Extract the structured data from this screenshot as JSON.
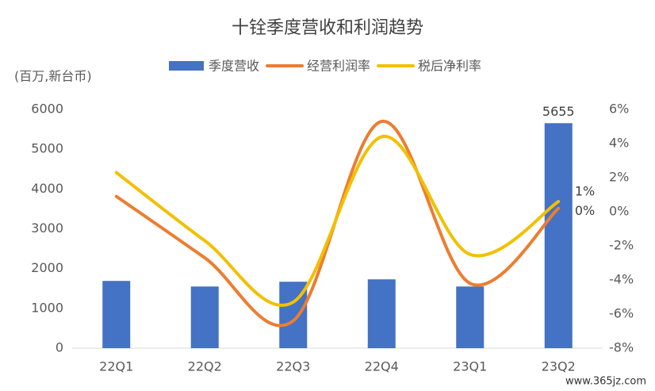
{
  "chart_data": {
    "type": "bar-line",
    "title": "十铨季度营收和利润趋势",
    "y_label": "(百万,新台币)",
    "watermark": "www.365jz.com",
    "categories": [
      "22Q1",
      "22Q2",
      "22Q3",
      "22Q4",
      "23Q1",
      "23Q2"
    ],
    "series": [
      {
        "name": "季度营收",
        "type": "bar",
        "color": "#4472c4",
        "values": [
          1690,
          1550,
          1670,
          1730,
          1550,
          5655
        ],
        "value_labels": [
          null,
          null,
          null,
          null,
          null,
          "5655"
        ]
      },
      {
        "name": "经营利润率",
        "type": "line",
        "axis": "y2",
        "color": "#ed7d31",
        "values": [
          0.9,
          -2.7,
          -6.4,
          5.3,
          -4.2,
          0.2
        ],
        "value_labels": [
          null,
          null,
          null,
          null,
          null,
          "0%"
        ]
      },
      {
        "name": "税后净利率",
        "type": "line",
        "axis": "y2",
        "color": "#f2c000",
        "values": [
          2.3,
          -1.7,
          -5.3,
          4.4,
          -2.5,
          0.6
        ],
        "value_labels": [
          null,
          null,
          null,
          null,
          null,
          "1%"
        ]
      }
    ],
    "ylim": [
      0,
      6000
    ],
    "yticks": [
      0,
      1000,
      2000,
      3000,
      4000,
      5000,
      6000
    ],
    "y2lim": [
      -8,
      6
    ],
    "y2ticks": [
      {
        "value": -8,
        "label": "-8%"
      },
      {
        "value": -6,
        "label": "-6%"
      },
      {
        "value": -4,
        "label": "-4%"
      },
      {
        "value": -2,
        "label": "-2%"
      },
      {
        "value": 0,
        "label": "0%"
      },
      {
        "value": 2,
        "label": "2%"
      },
      {
        "value": 4,
        "label": "4%"
      },
      {
        "value": 6,
        "label": "6%"
      }
    ],
    "legend": "top",
    "grid": false
  }
}
